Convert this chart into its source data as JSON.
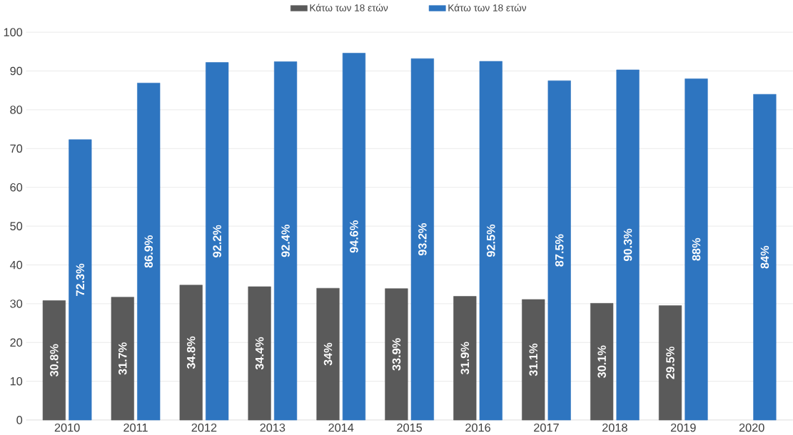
{
  "chart_data": {
    "type": "bar",
    "categories": [
      "2010",
      "2011",
      "2012",
      "2013",
      "2014",
      "2015",
      "2016",
      "2017",
      "2018",
      "2019",
      "2020"
    ],
    "series": [
      {
        "name": "Κάτω των 18 ετών",
        "color": "#5a5a5a",
        "values": [
          30.8,
          31.7,
          34.8,
          34.4,
          34,
          33.9,
          31.9,
          31.1,
          30.1,
          29.5,
          null
        ],
        "value_labels": [
          "30.8%",
          "31.7%",
          "34.8%",
          "34.4%",
          "34%",
          "33.9%",
          "31.9%",
          "31.1%",
          "30.1%",
          "29.5%",
          null
        ]
      },
      {
        "name": "Κάτω των 18 ετών",
        "color": "#2e75c0",
        "values": [
          72.3,
          86.9,
          92.2,
          92.4,
          94.6,
          93.2,
          92.5,
          87.5,
          90.3,
          88,
          84
        ],
        "value_labels": [
          "72.3%",
          "86.9%",
          "92.2%",
          "92.4%",
          "94.6%",
          "93.2%",
          "92.5%",
          "87.5%",
          "90.3%",
          "88%",
          "84%"
        ]
      }
    ],
    "ylim": [
      0,
      100
    ],
    "yticks": [
      0,
      10,
      20,
      30,
      40,
      50,
      60,
      70,
      80,
      90,
      100
    ],
    "grid": "y",
    "legend": "top"
  }
}
